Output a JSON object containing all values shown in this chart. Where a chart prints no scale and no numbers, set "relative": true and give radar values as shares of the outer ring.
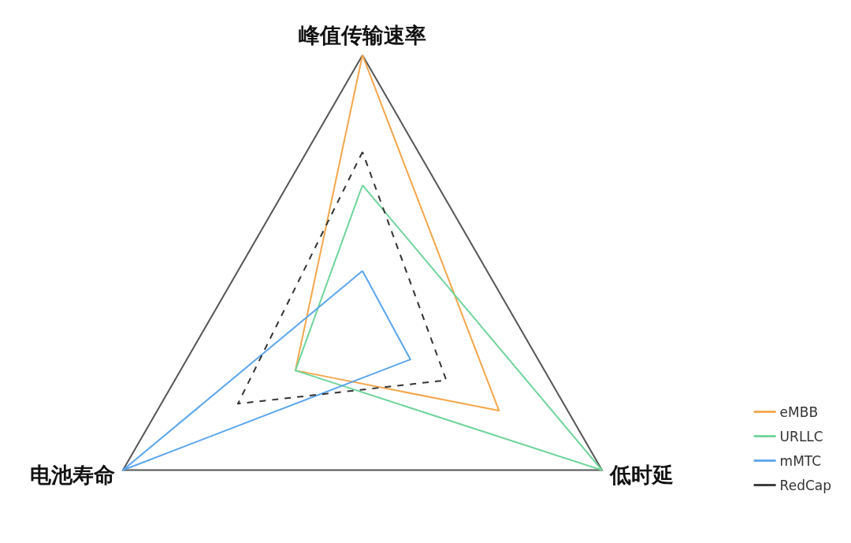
{
  "chart_data": {
    "type": "radar",
    "relative": true,
    "categories": [
      "峰值传输速率",
      "低时延",
      "电池寿命"
    ],
    "series": [
      {
        "name": "eMBB",
        "color": "#f5a54a",
        "values": [
          1,
          0.57,
          0.28
        ]
      },
      {
        "name": "URLLC",
        "color": "#6fd49a",
        "values": [
          0.53,
          1,
          0.28
        ]
      },
      {
        "name": "mMTC",
        "color": "#5aa5ee",
        "values": [
          0.22,
          0.2,
          1
        ]
      },
      {
        "name": "RedCap",
        "color": "#333333",
        "values": [
          0.65,
          0.35,
          0.52
        ],
        "line_style": "dashed"
      }
    ],
    "legend": "bottom right",
    "marker": "none",
    "line_style": "solid"
  }
}
